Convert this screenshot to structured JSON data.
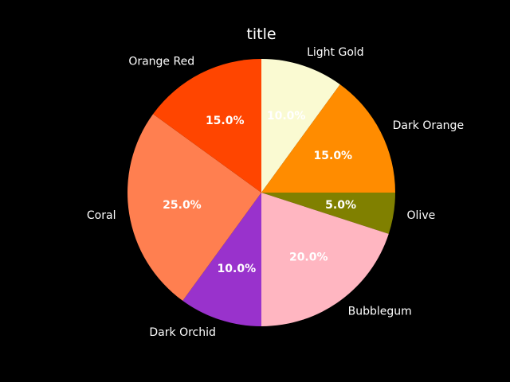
{
  "chart_data": {
    "type": "pie",
    "title": "title",
    "categories": [
      "Light Gold",
      "Dark Orange",
      "Olive",
      "Bubblegum",
      "Dark Orchid",
      "Coral",
      "Orange Red"
    ],
    "values": [
      10.0,
      15.0,
      5.0,
      20.0,
      10.0,
      25.0,
      15.0
    ],
    "percent_labels": [
      "10.0%",
      "15.0%",
      "5.0%",
      "20.0%",
      "10.0%",
      "25.0%",
      "15.0%"
    ],
    "colors": [
      "#fafad2",
      "#ff8c00",
      "#808000",
      "#ffb6c1",
      "#9932cc",
      "#ff7f50",
      "#ff4500"
    ],
    "start_angle_deg": 90,
    "direction": "clockwise"
  }
}
